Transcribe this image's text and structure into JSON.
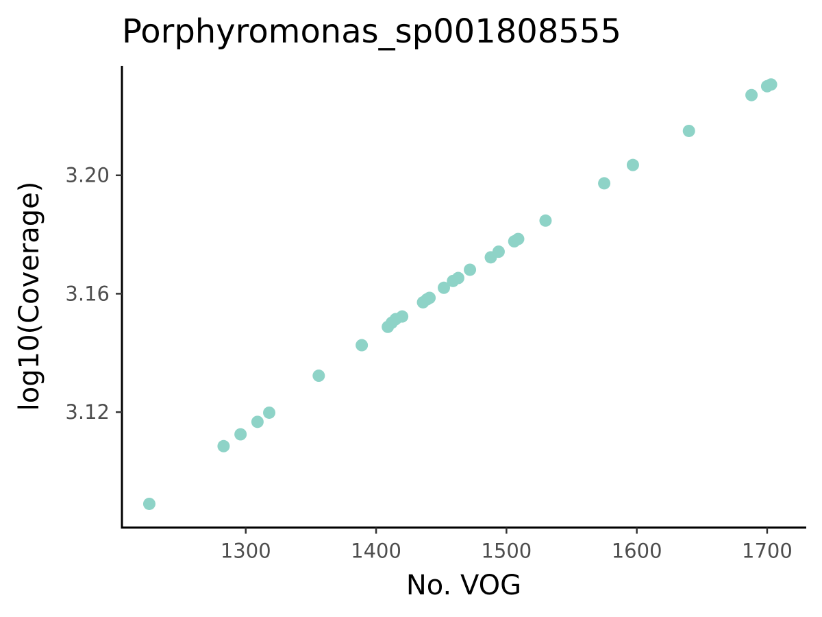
{
  "chart_data": {
    "type": "scatter",
    "title": "Porphyromonas_sp001808555",
    "xlabel": "No. VOG",
    "ylabel": "log10(Coverage)",
    "xlim": [
      1205,
      1730
    ],
    "ylim": [
      3.081,
      3.237
    ],
    "x_ticks": [
      1300,
      1400,
      1500,
      1600,
      1700
    ],
    "y_ticks": [
      3.12,
      3.16,
      3.2
    ],
    "x_tick_labels": [
      "1300",
      "1400",
      "1500",
      "1600",
      "1700"
    ],
    "y_tick_labels": [
      "3.12",
      "3.16",
      "3.20"
    ],
    "point_color": "#8ED3C7",
    "grid": false,
    "legend": "none",
    "series": [
      {
        "x": [
          1226,
          1283,
          1296,
          1309,
          1318,
          1356,
          1389,
          1409,
          1412,
          1415,
          1420,
          1436,
          1439,
          1441,
          1452,
          1459,
          1463,
          1472,
          1488,
          1494,
          1506,
          1509,
          1530,
          1575,
          1597,
          1640,
          1688,
          1700,
          1703
        ],
        "y": [
          3.089,
          3.1085,
          3.1125,
          3.1167,
          3.1198,
          3.1323,
          3.1426,
          3.1488,
          3.1502,
          3.1514,
          3.1523,
          3.1571,
          3.1581,
          3.1586,
          3.162,
          3.1643,
          3.1653,
          3.1681,
          3.1723,
          3.1742,
          3.1777,
          3.1785,
          3.1847,
          3.1973,
          3.2035,
          3.215,
          3.2271,
          3.2301,
          3.2307
        ]
      }
    ]
  }
}
